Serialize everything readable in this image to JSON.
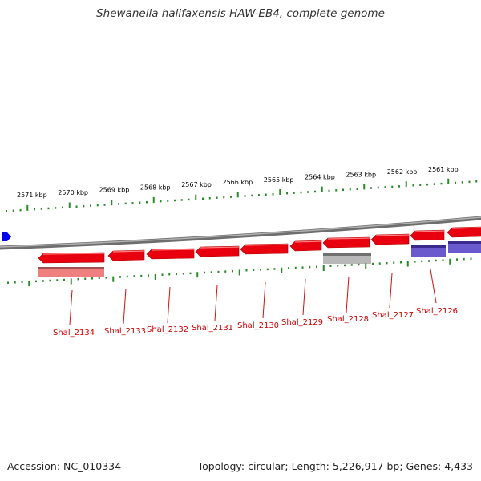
{
  "title": "Shewanella halifaxensis HAW-EB4, complete genome",
  "footer": {
    "accession": "Accession: NC_010334",
    "summary": "Topology: circular; Length: 5,226,917 bp; Genes: 4,433"
  },
  "colors": {
    "gene_forward": "#e8000f",
    "gene_label": "#cc0000",
    "backbone": "#808080",
    "ticks": "#2a8a2a",
    "cds_pink": "#f08080",
    "cds_grey": "#b8b8b8",
    "cds_purple": "#6a5acd",
    "origin_marker": "#0000ee"
  },
  "scale_labels": [
    "2571 kbp",
    "2570 kbp",
    "2569 kbp",
    "2568 kbp",
    "2567 kbp",
    "2566 kbp",
    "2565 kbp",
    "2564 kbp",
    "2563 kbp",
    "2562 kbp",
    "2561 kbp"
  ],
  "genes": [
    "Shal_2134",
    "Shal_2133",
    "Shal_2132",
    "Shal_2131",
    "Shal_2130",
    "Shal_2129",
    "Shal_2128",
    "Shal_2127",
    "Shal_2126"
  ]
}
